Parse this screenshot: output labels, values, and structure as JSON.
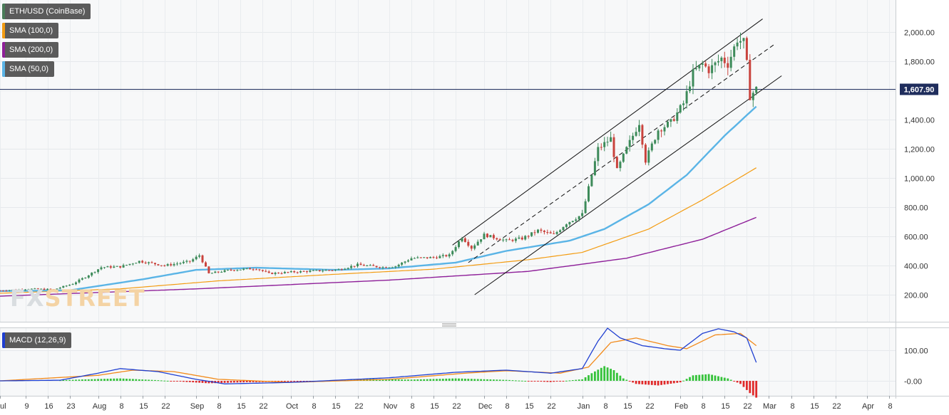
{
  "legends": [
    {
      "label": "ETH/USD (CoinBase)",
      "color": "#4a7c59"
    },
    {
      "label": "SMA (100,0)",
      "color": "#f39c12"
    },
    {
      "label": "SMA (200,0)",
      "color": "#8e1f99"
    },
    {
      "label": "SMA (50,0)",
      "color": "#5ab4e6"
    }
  ],
  "macd_legend": {
    "label": "MACD (12,26,9)",
    "color": "#1f3fd1"
  },
  "watermark": {
    "fx": "FX",
    "street": "STREET"
  },
  "chart_data": [
    {
      "type": "candlestick",
      "title": "ETH/USD (CoinBase)",
      "ylim": [
        120,
        2150
      ],
      "y_ticks": [
        200,
        400,
        600,
        800,
        1000,
        1200,
        1400,
        1600,
        1800,
        2000
      ],
      "y_tick_labels": [
        "200.00",
        "400.00",
        "600.00",
        "800.00",
        "1,000.00",
        "1,200.00",
        "1,400.00",
        "1,600.00",
        "1,800.00",
        "2,000.00"
      ],
      "current_price": 1607.9,
      "current_price_label": "1,607.90",
      "x_start": "2020-07-01",
      "x_end": "2021-04-10",
      "x_tick_dates": [
        "2020-07-01",
        "2020-07-09",
        "2020-07-16",
        "2020-07-23",
        "2020-08-01",
        "2020-08-08",
        "2020-08-15",
        "2020-08-22",
        "2020-09-01",
        "2020-09-08",
        "2020-09-15",
        "2020-09-22",
        "2020-10-01",
        "2020-10-08",
        "2020-10-15",
        "2020-10-22",
        "2020-11-01",
        "2020-11-08",
        "2020-11-15",
        "2020-11-22",
        "2020-12-01",
        "2020-12-08",
        "2020-12-15",
        "2020-12-22",
        "2021-01-01",
        "2021-01-08",
        "2021-01-15",
        "2021-01-22",
        "2021-02-01",
        "2021-02-08",
        "2021-02-15",
        "2021-02-22",
        "2021-03-01",
        "2021-03-08",
        "2021-03-15",
        "2021-03-22",
        "2021-04-01",
        "2021-04-08"
      ],
      "x_tick_labels": [
        "Jul",
        "9",
        "16",
        "23",
        "Aug",
        "8",
        "15",
        "22",
        "Sep",
        "8",
        "15",
        "22",
        "Oct",
        "8",
        "15",
        "22",
        "Nov",
        "8",
        "15",
        "22",
        "Dec",
        "8",
        "15",
        "22",
        "Jan",
        "8",
        "15",
        "22",
        "Feb",
        "8",
        "15",
        "22",
        "Mar",
        "8",
        "15",
        "22",
        "Apr",
        "8"
      ],
      "price_anchors": [
        {
          "date": "2020-07-01",
          "value": 228
        },
        {
          "date": "2020-07-10",
          "value": 240
        },
        {
          "date": "2020-07-18",
          "value": 236
        },
        {
          "date": "2020-07-24",
          "value": 275
        },
        {
          "date": "2020-07-28",
          "value": 322
        },
        {
          "date": "2020-08-02",
          "value": 388
        },
        {
          "date": "2020-08-08",
          "value": 392
        },
        {
          "date": "2020-08-14",
          "value": 430
        },
        {
          "date": "2020-08-22",
          "value": 400
        },
        {
          "date": "2020-08-30",
          "value": 428
        },
        {
          "date": "2020-09-02",
          "value": 470
        },
        {
          "date": "2020-09-05",
          "value": 345
        },
        {
          "date": "2020-09-12",
          "value": 370
        },
        {
          "date": "2020-09-20",
          "value": 380
        },
        {
          "date": "2020-09-24",
          "value": 345
        },
        {
          "date": "2020-10-01",
          "value": 355
        },
        {
          "date": "2020-10-10",
          "value": 365
        },
        {
          "date": "2020-10-16",
          "value": 372
        },
        {
          "date": "2020-10-22",
          "value": 405
        },
        {
          "date": "2020-10-30",
          "value": 388
        },
        {
          "date": "2020-11-03",
          "value": 395
        },
        {
          "date": "2020-11-08",
          "value": 450
        },
        {
          "date": "2020-11-15",
          "value": 455
        },
        {
          "date": "2020-11-20",
          "value": 470
        },
        {
          "date": "2020-11-24",
          "value": 595
        },
        {
          "date": "2020-11-27",
          "value": 520
        },
        {
          "date": "2020-12-01",
          "value": 610
        },
        {
          "date": "2020-12-08",
          "value": 570
        },
        {
          "date": "2020-12-13",
          "value": 585
        },
        {
          "date": "2020-12-18",
          "value": 640
        },
        {
          "date": "2020-12-23",
          "value": 610
        },
        {
          "date": "2020-12-27",
          "value": 690
        },
        {
          "date": "2021-01-01",
          "value": 750
        },
        {
          "date": "2021-01-04",
          "value": 1020
        },
        {
          "date": "2021-01-06",
          "value": 1200
        },
        {
          "date": "2021-01-10",
          "value": 1270
        },
        {
          "date": "2021-01-12",
          "value": 1050
        },
        {
          "date": "2021-01-15",
          "value": 1200
        },
        {
          "date": "2021-01-19",
          "value": 1380
        },
        {
          "date": "2021-01-21",
          "value": 1120
        },
        {
          "date": "2021-01-25",
          "value": 1330
        },
        {
          "date": "2021-01-29",
          "value": 1380
        },
        {
          "date": "2021-02-02",
          "value": 1510
        },
        {
          "date": "2021-02-05",
          "value": 1720
        },
        {
          "date": "2021-02-08",
          "value": 1780
        },
        {
          "date": "2021-02-10",
          "value": 1740
        },
        {
          "date": "2021-02-14",
          "value": 1820
        },
        {
          "date": "2021-02-16",
          "value": 1780
        },
        {
          "date": "2021-02-19",
          "value": 1950
        },
        {
          "date": "2021-02-21",
          "value": 1930
        },
        {
          "date": "2021-02-22",
          "value": 1780
        },
        {
          "date": "2021-02-23",
          "value": 1560
        },
        {
          "date": "2021-02-25",
          "value": 1610
        }
      ],
      "sma_50": [
        {
          "date": "2020-07-01",
          "value": 225
        },
        {
          "date": "2020-07-23",
          "value": 230
        },
        {
          "date": "2020-08-15",
          "value": 305
        },
        {
          "date": "2020-09-01",
          "value": 370
        },
        {
          "date": "2020-09-20",
          "value": 385
        },
        {
          "date": "2020-10-15",
          "value": 370
        },
        {
          "date": "2020-11-01",
          "value": 380
        },
        {
          "date": "2020-11-22",
          "value": 420
        },
        {
          "date": "2020-12-08",
          "value": 500
        },
        {
          "date": "2020-12-28",
          "value": 570
        },
        {
          "date": "2021-01-08",
          "value": 650
        },
        {
          "date": "2021-01-22",
          "value": 820
        },
        {
          "date": "2021-02-03",
          "value": 1020
        },
        {
          "date": "2021-02-15",
          "value": 1290
        },
        {
          "date": "2021-02-25",
          "value": 1490
        }
      ],
      "sma_100": [
        {
          "date": "2020-07-01",
          "value": 210
        },
        {
          "date": "2020-08-08",
          "value": 240
        },
        {
          "date": "2020-09-08",
          "value": 295
        },
        {
          "date": "2020-10-15",
          "value": 340
        },
        {
          "date": "2020-11-15",
          "value": 375
        },
        {
          "date": "2020-12-15",
          "value": 440
        },
        {
          "date": "2021-01-01",
          "value": 490
        },
        {
          "date": "2021-01-22",
          "value": 650
        },
        {
          "date": "2021-02-08",
          "value": 850
        },
        {
          "date": "2021-02-25",
          "value": 1070
        }
      ],
      "sma_200": [
        {
          "date": "2020-07-01",
          "value": 190
        },
        {
          "date": "2020-09-01",
          "value": 240
        },
        {
          "date": "2020-11-01",
          "value": 300
        },
        {
          "date": "2020-12-15",
          "value": 360
        },
        {
          "date": "2021-01-15",
          "value": 450
        },
        {
          "date": "2021-02-08",
          "value": 580
        },
        {
          "date": "2021-02-25",
          "value": 730
        }
      ],
      "channel_lines": [
        {
          "style": "solid",
          "from": {
            "date": "2020-11-21",
            "value": 540
          },
          "to": {
            "date": "2021-02-27",
            "value": 2090
          }
        },
        {
          "style": "dashed",
          "from": {
            "date": "2020-11-26",
            "value": 420
          },
          "to": {
            "date": "2021-03-03",
            "value": 1920
          }
        },
        {
          "style": "solid",
          "from": {
            "date": "2020-11-28",
            "value": 200
          },
          "to": {
            "date": "2021-03-05",
            "value": 1700
          }
        }
      ]
    },
    {
      "type": "line",
      "title": "MACD (12,26,9)",
      "ylim": [
        -55,
        185
      ],
      "y_ticks": [
        100,
        0
      ],
      "y_tick_labels": [
        "100.00",
        "-0.00"
      ],
      "macd_line": [
        {
          "date": "2020-07-01",
          "value": 0
        },
        {
          "date": "2020-07-20",
          "value": 2
        },
        {
          "date": "2020-08-01",
          "value": 25
        },
        {
          "date": "2020-08-08",
          "value": 40
        },
        {
          "date": "2020-08-20",
          "value": 30
        },
        {
          "date": "2020-09-01",
          "value": 5
        },
        {
          "date": "2020-09-10",
          "value": -10
        },
        {
          "date": "2020-10-01",
          "value": -5
        },
        {
          "date": "2020-11-01",
          "value": 10
        },
        {
          "date": "2020-11-22",
          "value": 28
        },
        {
          "date": "2020-12-08",
          "value": 35
        },
        {
          "date": "2020-12-22",
          "value": 25
        },
        {
          "date": "2021-01-01",
          "value": 40
        },
        {
          "date": "2021-01-06",
          "value": 130
        },
        {
          "date": "2021-01-09",
          "value": 172
        },
        {
          "date": "2021-01-13",
          "value": 140
        },
        {
          "date": "2021-01-20",
          "value": 115
        },
        {
          "date": "2021-01-27",
          "value": 105
        },
        {
          "date": "2021-02-01",
          "value": 100
        },
        {
          "date": "2021-02-08",
          "value": 155
        },
        {
          "date": "2021-02-13",
          "value": 170
        },
        {
          "date": "2021-02-18",
          "value": 160
        },
        {
          "date": "2021-02-22",
          "value": 140
        },
        {
          "date": "2021-02-25",
          "value": 60
        }
      ],
      "signal_line": [
        {
          "date": "2020-07-01",
          "value": 0
        },
        {
          "date": "2020-08-01",
          "value": 18
        },
        {
          "date": "2020-08-12",
          "value": 35
        },
        {
          "date": "2020-08-25",
          "value": 30
        },
        {
          "date": "2020-09-08",
          "value": 5
        },
        {
          "date": "2020-10-01",
          "value": -5
        },
        {
          "date": "2020-11-01",
          "value": 5
        },
        {
          "date": "2020-11-25",
          "value": 25
        },
        {
          "date": "2020-12-08",
          "value": 33
        },
        {
          "date": "2020-12-25",
          "value": 25
        },
        {
          "date": "2021-01-03",
          "value": 45
        },
        {
          "date": "2021-01-10",
          "value": 125
        },
        {
          "date": "2021-01-18",
          "value": 140
        },
        {
          "date": "2021-01-28",
          "value": 115
        },
        {
          "date": "2021-02-03",
          "value": 105
        },
        {
          "date": "2021-02-12",
          "value": 150
        },
        {
          "date": "2021-02-20",
          "value": 155
        },
        {
          "date": "2021-02-25",
          "value": 115
        }
      ],
      "histogram": [
        {
          "date": "2020-07-20",
          "value": 2
        },
        {
          "date": "2020-08-01",
          "value": 6
        },
        {
          "date": "2020-08-08",
          "value": 8
        },
        {
          "date": "2020-08-20",
          "value": 2
        },
        {
          "date": "2020-09-05",
          "value": -8
        },
        {
          "date": "2020-09-15",
          "value": -5
        },
        {
          "date": "2020-10-08",
          "value": -2
        },
        {
          "date": "2020-10-25",
          "value": 6
        },
        {
          "date": "2020-11-08",
          "value": 4
        },
        {
          "date": "2020-11-22",
          "value": 8
        },
        {
          "date": "2020-12-08",
          "value": 3
        },
        {
          "date": "2020-12-22",
          "value": -4
        },
        {
          "date": "2021-01-01",
          "value": 5
        },
        {
          "date": "2021-01-04",
          "value": 25
        },
        {
          "date": "2021-01-08",
          "value": 48
        },
        {
          "date": "2021-01-11",
          "value": 35
        },
        {
          "date": "2021-01-14",
          "value": 8
        },
        {
          "date": "2021-01-18",
          "value": -10
        },
        {
          "date": "2021-01-25",
          "value": -15
        },
        {
          "date": "2021-02-01",
          "value": -5
        },
        {
          "date": "2021-02-05",
          "value": 18
        },
        {
          "date": "2021-02-10",
          "value": 22
        },
        {
          "date": "2021-02-16",
          "value": 8
        },
        {
          "date": "2021-02-20",
          "value": -10
        },
        {
          "date": "2021-02-23",
          "value": -40
        },
        {
          "date": "2021-02-25",
          "value": -55
        }
      ]
    }
  ]
}
